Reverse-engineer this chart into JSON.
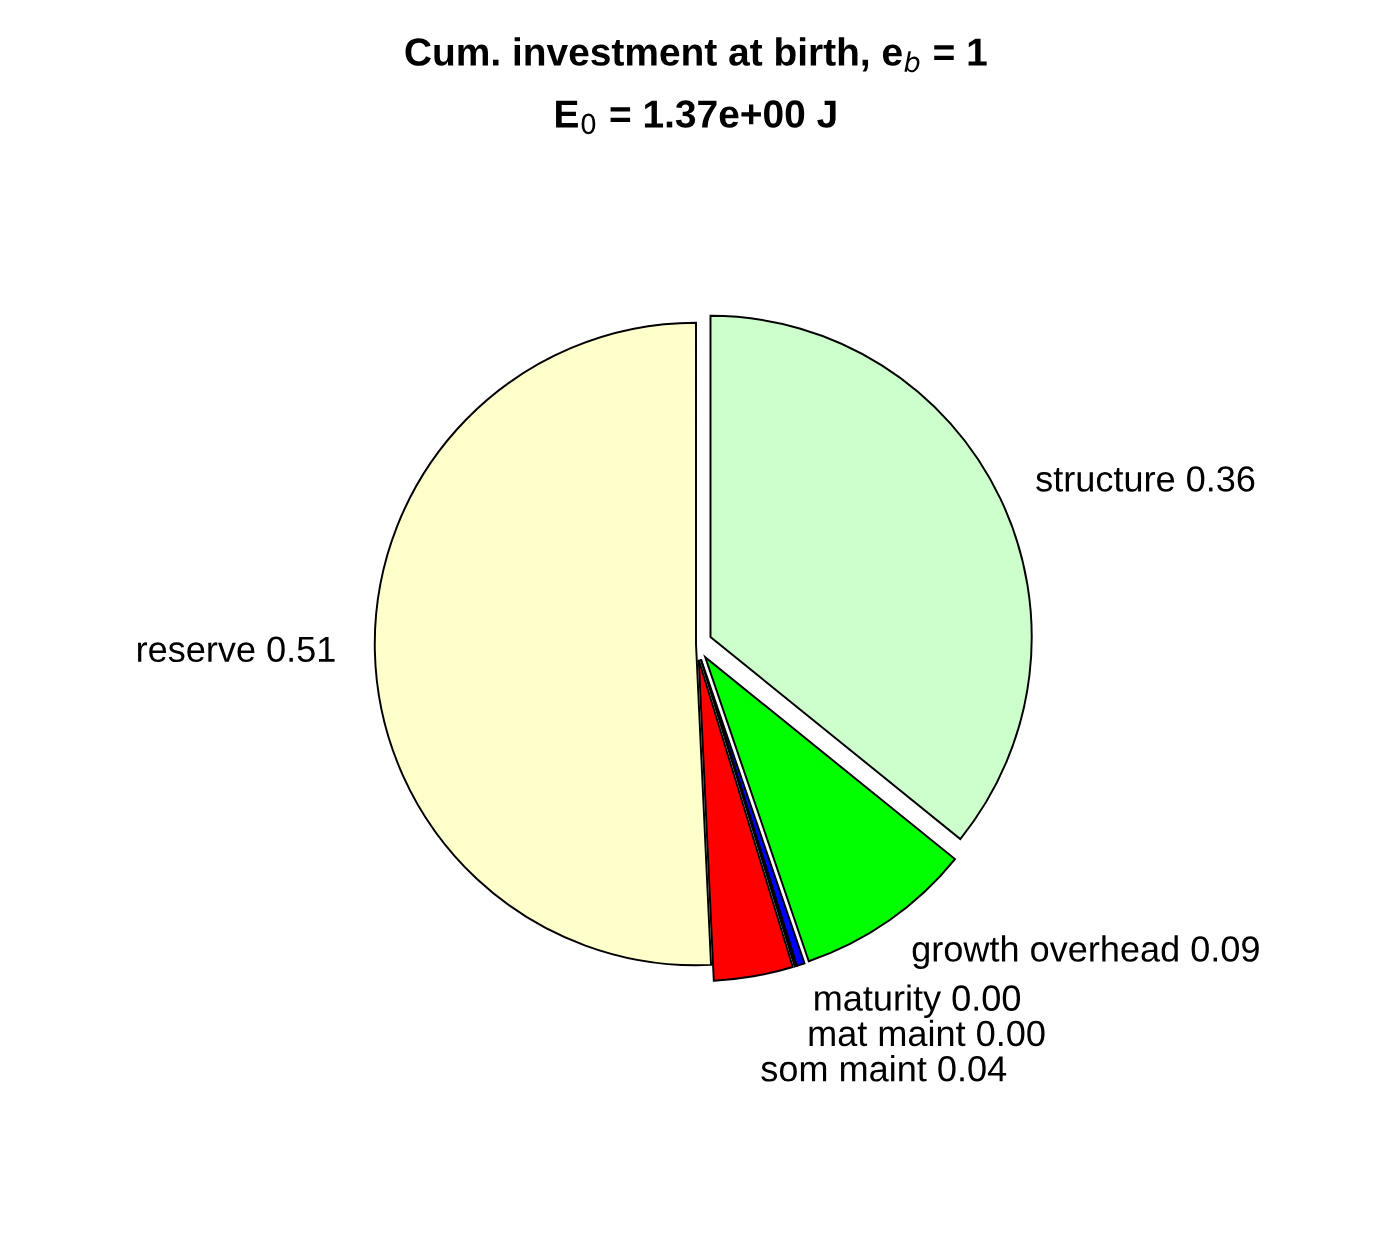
{
  "chart_data": {
    "type": "pie",
    "title": "Cum. investment at birth, e$_{b}$ = 1",
    "subtitle": "E$_{0}$ = 1.37e+00 J",
    "categories": [
      "structure",
      "growth overhead",
      "maturity",
      "mat maint",
      "som maint",
      "reserve"
    ],
    "values": [
      0.36,
      0.09,
      0.004,
      0.001,
      0.04,
      0.51
    ],
    "value_labels": [
      "0.36",
      "0.09",
      "0.00",
      "0.00",
      "0.04",
      "0.51"
    ],
    "colors": [
      "#ccffcc",
      "#00ff00",
      "#0000ff",
      "#000099",
      "#ff0000",
      "#ffffcc"
    ]
  }
}
